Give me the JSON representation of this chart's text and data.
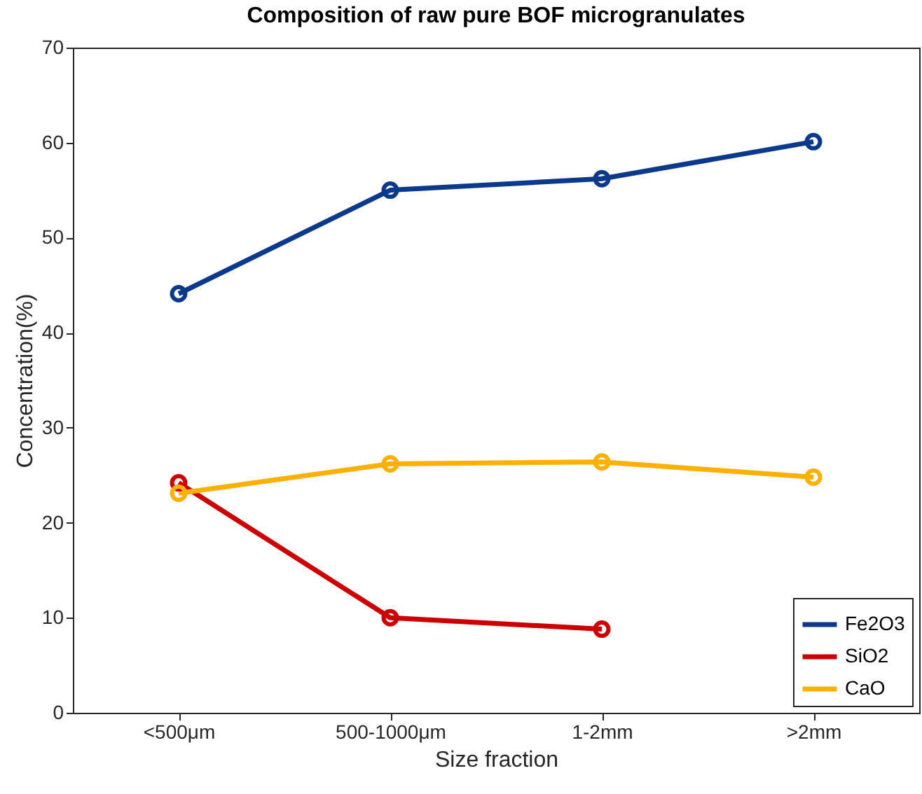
{
  "chart_data": {
    "type": "line",
    "title": "Composition of raw pure BOF microgranulates",
    "xlabel": "Size fraction",
    "ylabel": "Concentration(%)",
    "categories": [
      "<500μm",
      "500-1000μm",
      "1-2mm",
      ">2mm"
    ],
    "series": [
      {
        "name": "Fe2O3",
        "color": "#0b3a8c",
        "values": [
          44.1,
          55.0,
          56.2,
          60.1
        ]
      },
      {
        "name": "SiO2",
        "color": "#cc0000",
        "values": [
          24.2,
          10.0,
          8.8,
          null
        ]
      },
      {
        "name": "CaO",
        "color": "#ffb000",
        "values": [
          23.1,
          26.2,
          26.4,
          24.8
        ]
      }
    ],
    "ylim": [
      0,
      70
    ],
    "yticks": [
      0,
      10,
      20,
      30,
      40,
      50,
      60,
      70
    ],
    "grid": false,
    "legend": "bottom right",
    "marker": "circle",
    "line_style": "solid"
  }
}
